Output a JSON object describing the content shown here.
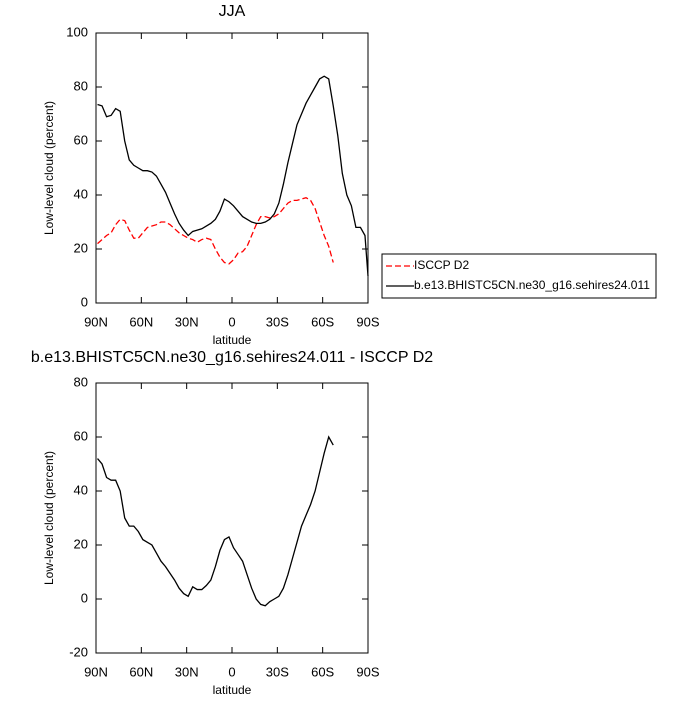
{
  "chart_data": [
    {
      "type": "line",
      "title": "JJA",
      "xlabel": "latitude",
      "ylabel": "Low-level cloud (percent)",
      "x": [
        89,
        86,
        83,
        80,
        77,
        74,
        71,
        68,
        65,
        62,
        59,
        56,
        53,
        50,
        47,
        44,
        41,
        38,
        35,
        32,
        29,
        26,
        23,
        20,
        17,
        14,
        11,
        8,
        5,
        2,
        -1,
        -4,
        -7,
        -10,
        -13,
        -16,
        -19,
        -22,
        -25,
        -28,
        -31,
        -34,
        -37,
        -40,
        -43,
        -46,
        -49,
        -52,
        -55,
        -58,
        -61,
        -64,
        -67,
        -70,
        -73,
        -76,
        -79,
        -82,
        -85,
        -88,
        -90
      ],
      "series": [
        {
          "name": "ISCCP D2",
          "color": "#ff0000",
          "dash": true,
          "values": [
            22,
            23.5,
            25,
            26,
            29,
            31,
            30.5,
            27,
            24,
            24,
            26,
            28,
            28.5,
            29,
            30,
            30,
            29,
            27.5,
            26,
            25,
            24,
            23.5,
            22.5,
            23.5,
            24,
            23.5,
            20,
            17,
            15,
            14.5,
            16,
            18.5,
            19,
            21,
            25,
            29,
            32,
            32,
            31.5,
            32,
            33,
            35,
            37,
            38,
            38,
            38.5,
            39,
            38,
            35,
            30,
            25,
            21,
            15,
            null,
            null,
            null,
            null,
            null,
            null,
            null,
            null
          ]
        },
        {
          "name": "b.e13.BHISTC5CN.ne30_g16.sehires24.011",
          "color": "#000000",
          "dash": false,
          "values": [
            73.5,
            73,
            69,
            69.5,
            72,
            71,
            60,
            53,
            51,
            50,
            49,
            49,
            48.5,
            47,
            44,
            41,
            37,
            33,
            29.5,
            27,
            25,
            26.5,
            27,
            27.5,
            28.5,
            29.5,
            31,
            34,
            38.5,
            37.5,
            36,
            34,
            32,
            31,
            30,
            29.5,
            29.5,
            30,
            31,
            33,
            37,
            44,
            52,
            59,
            66,
            70,
            74,
            77,
            80,
            83,
            84,
            83,
            73,
            62,
            48,
            40,
            36,
            28,
            28,
            25,
            10
          ]
        }
      ],
      "xlim": [
        90,
        -90
      ],
      "ylim": [
        0,
        100
      ],
      "xticks": [
        {
          "value": 90,
          "label": "90N"
        },
        {
          "value": 60,
          "label": "60N"
        },
        {
          "value": 30,
          "label": "30N"
        },
        0,
        {
          "value": -30,
          "label": "30S"
        },
        {
          "value": -60,
          "label": "60S"
        },
        {
          "value": -90,
          "label": "90S"
        }
      ],
      "yticks": [
        0,
        20,
        40,
        60,
        80,
        100
      ],
      "legend": "right"
    },
    {
      "type": "line",
      "title": "b.e13.BHISTC5CN.ne30_g16.sehires24.011 - ISCCP D2",
      "xlabel": "latitude",
      "ylabel": "Low-level cloud (percent)",
      "x": [
        89,
        86,
        83,
        80,
        77,
        74,
        71,
        68,
        65,
        62,
        59,
        56,
        53,
        50,
        47,
        44,
        41,
        38,
        35,
        32,
        29,
        26,
        23,
        20,
        17,
        14,
        11,
        8,
        5,
        2,
        -1,
        -4,
        -7,
        -10,
        -13,
        -16,
        -19,
        -22,
        -25,
        -28,
        -31,
        -34,
        -37,
        -40,
        -43,
        -46,
        -49,
        -52,
        -55,
        -58,
        -61,
        -64,
        -67
      ],
      "series": [
        {
          "color": "#000000",
          "dash": false,
          "values": [
            52,
            50,
            45,
            44,
            44,
            40,
            30,
            27,
            27,
            25,
            22,
            21,
            20,
            17,
            14,
            12,
            9.5,
            7,
            4,
            2,
            1,
            4.5,
            3.5,
            3.5,
            5,
            7,
            12,
            18,
            22,
            23,
            19,
            16.5,
            14,
            9,
            4,
            0,
            -2,
            -2.5,
            -1,
            0,
            1,
            4,
            9,
            15,
            21,
            27,
            31,
            35,
            40,
            47,
            54,
            60,
            57
          ]
        }
      ],
      "xlim": [
        90,
        -90
      ],
      "ylim": [
        -20,
        80
      ],
      "xticks": [
        {
          "value": 90,
          "label": "90N"
        },
        {
          "value": 60,
          "label": "60N"
        },
        {
          "value": 30,
          "label": "30N"
        },
        0,
        {
          "value": -30,
          "label": "30S"
        },
        {
          "value": -60,
          "label": "60S"
        },
        {
          "value": -90,
          "label": "90S"
        }
      ],
      "yticks": [
        -20,
        0,
        20,
        40,
        60,
        80
      ]
    }
  ]
}
